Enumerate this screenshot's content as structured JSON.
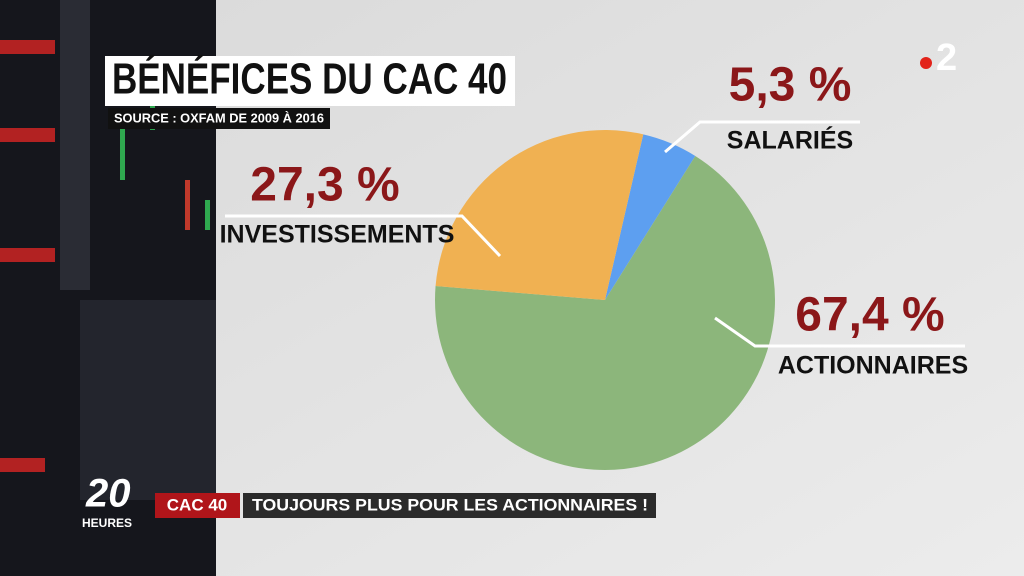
{
  "chart_data": {
    "type": "pie",
    "title": "BÉNÉFICES DU CAC 40",
    "subtitle": "SOURCE : OXFAM DE 2009 À 2016",
    "categories": [
      "SALARIÉS",
      "ACTIONNAIRES",
      "INVESTISSEMENTS"
    ],
    "values": [
      5.3,
      67.4,
      27.3
    ],
    "value_labels": [
      "5,3 %",
      "67,4 %",
      "27,3 %"
    ],
    "colors": [
      "#5d9ff0",
      "#8cb67b",
      "#f0b152"
    ]
  },
  "channel_logo": "2",
  "banner": {
    "show": "20",
    "show_sub": "HEURES",
    "tag": "CAC 40",
    "headline": "TOUJOURS PLUS POUR LES ACTIONNAIRES !"
  }
}
